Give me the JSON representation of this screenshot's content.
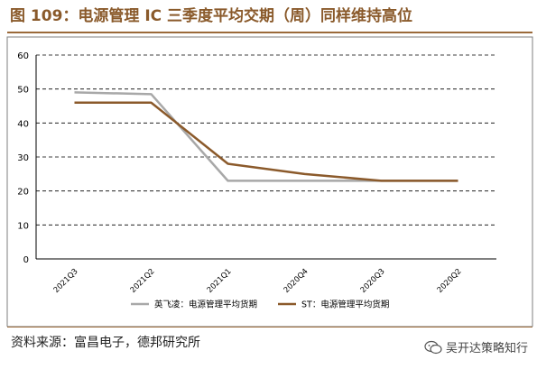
{
  "title": "图 109：电源管理 IC 三季度平均交期（周）同样维持高位",
  "source": "资料来源：富昌电子，德邦研究所",
  "watermark": "吴开达策略知行",
  "colors": {
    "series1": "#a8a8a8",
    "series2": "#8b5a2b",
    "accent": "#8a5a2b"
  },
  "icons": {
    "watermark": "wechat-icon"
  },
  "chart_data": {
    "type": "line",
    "title": "",
    "xlabel": "",
    "ylabel": "",
    "categories": [
      "2021Q3",
      "2021Q2",
      "2021Q1",
      "2020Q4",
      "2020Q3",
      "2020Q2"
    ],
    "ylim": [
      0,
      60
    ],
    "yticks": [
      0,
      10,
      20,
      30,
      40,
      50,
      60
    ],
    "grid": true,
    "legend_position": "bottom",
    "series": [
      {
        "name": "英飞凌：电源管理平均货期",
        "values": [
          49,
          48.5,
          23,
          23,
          23,
          23
        ]
      },
      {
        "name": "ST：电源管理平均货期",
        "values": [
          46,
          46,
          28,
          25,
          23,
          23
        ]
      }
    ]
  }
}
